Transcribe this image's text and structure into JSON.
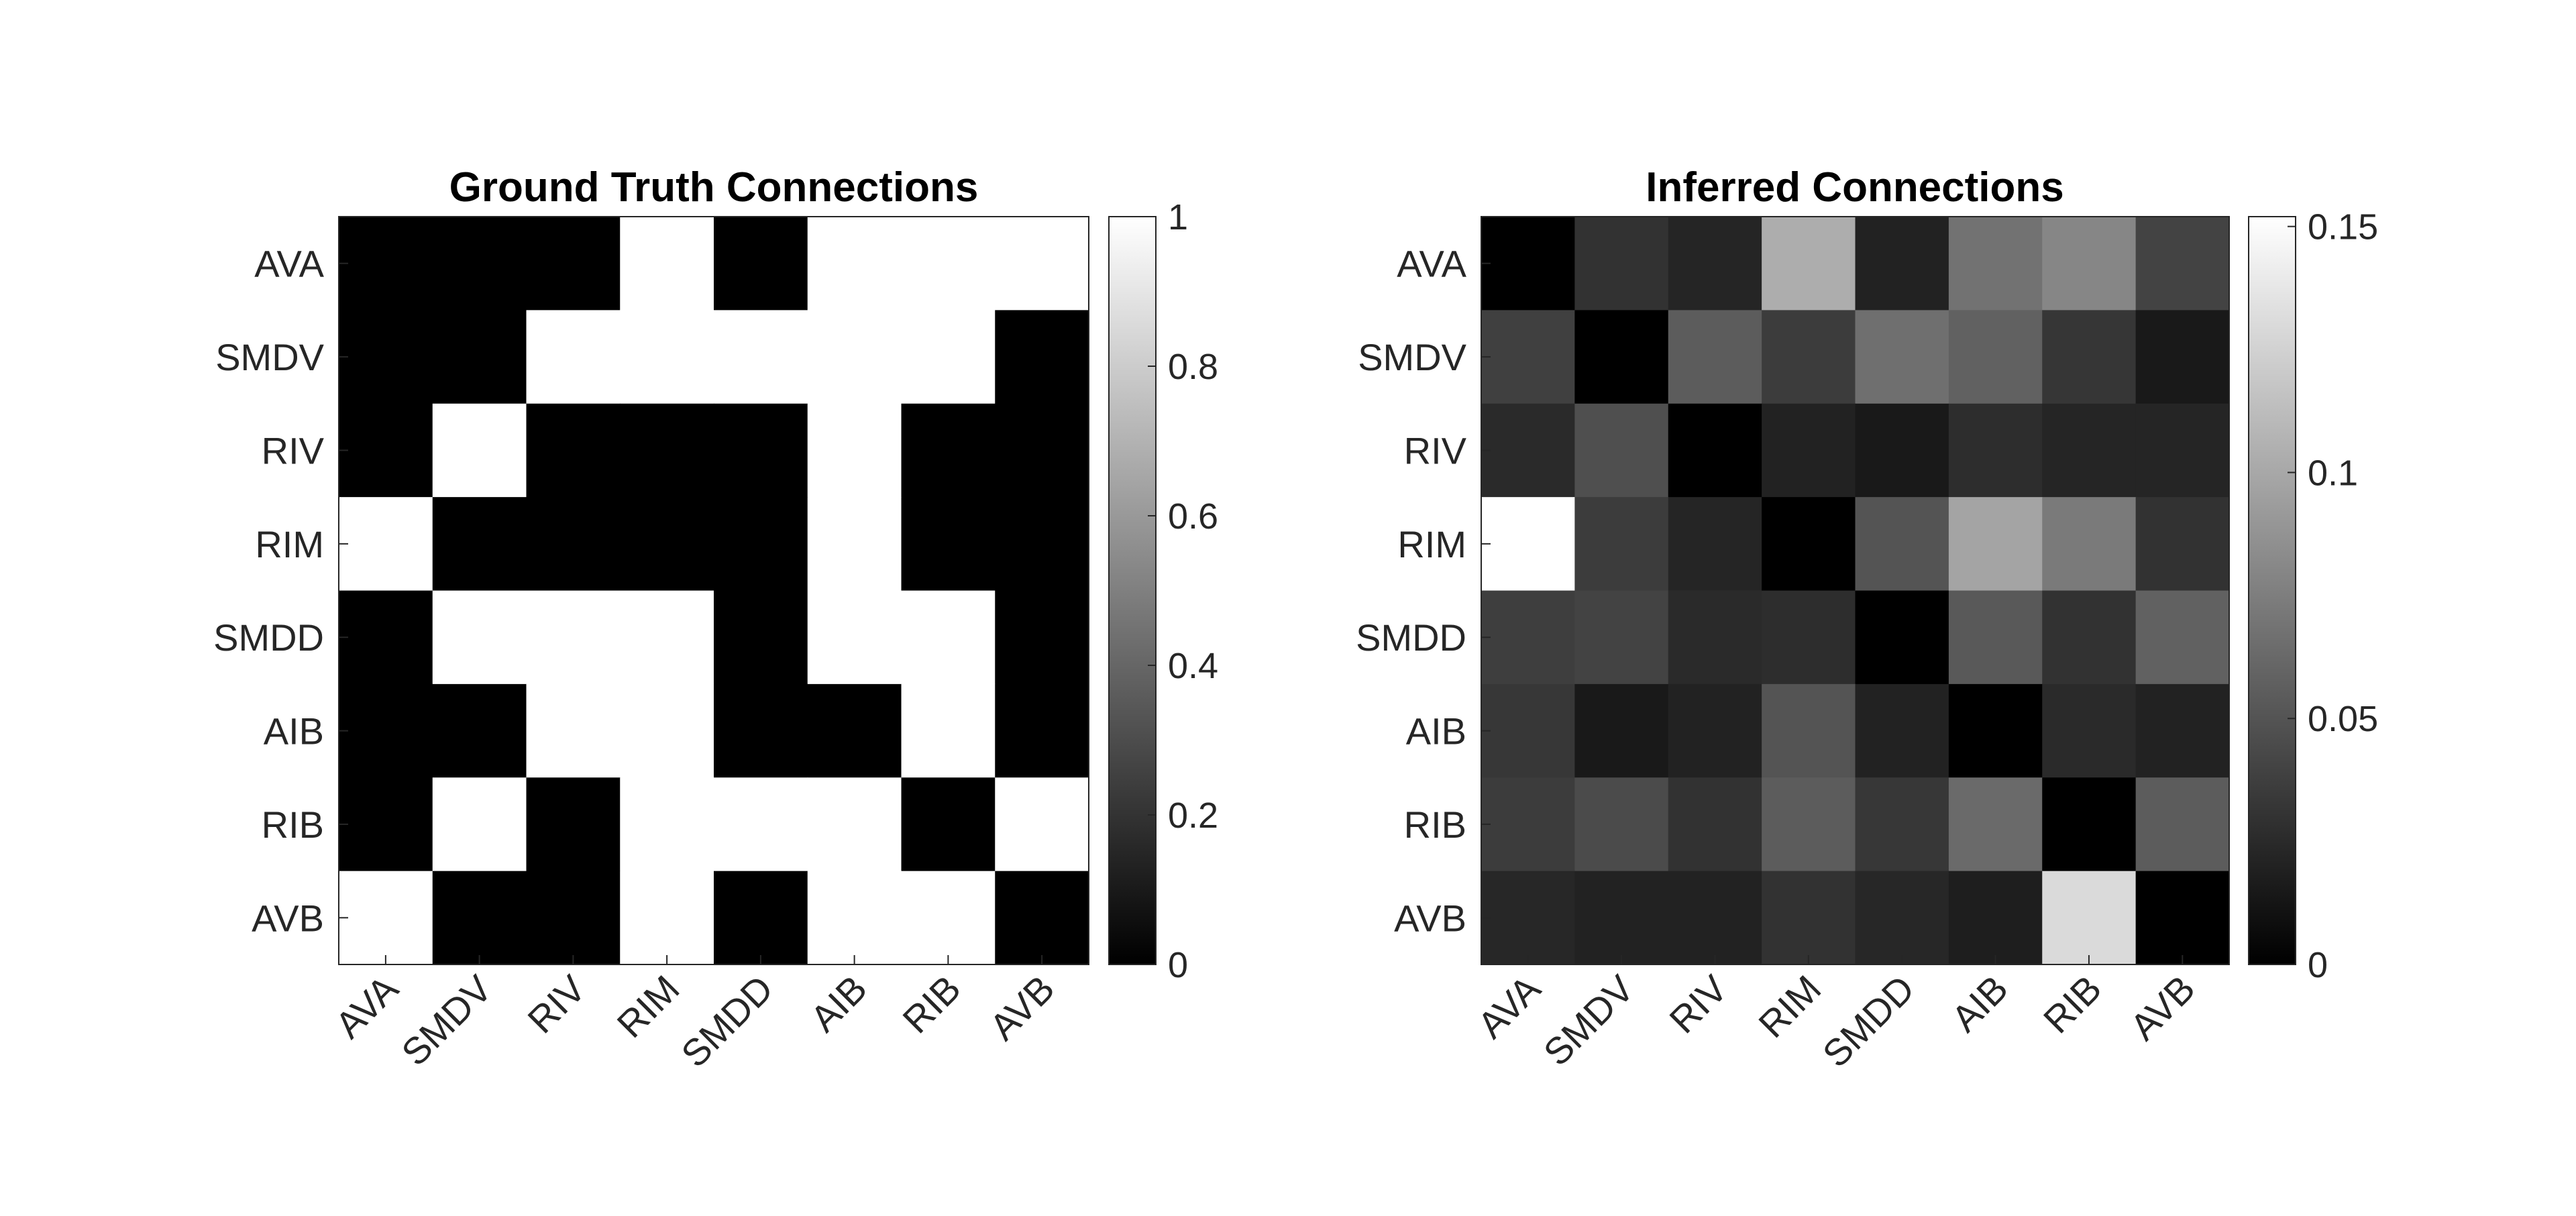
{
  "chart_data": [
    {
      "type": "heatmap",
      "title": "Ground Truth Connections",
      "x_categories": [
        "AVA",
        "SMDV",
        "RIV",
        "RIM",
        "SMDD",
        "AIB",
        "RIB",
        "AVB"
      ],
      "y_categories": [
        "AVA",
        "SMDV",
        "RIV",
        "RIM",
        "SMDD",
        "AIB",
        "RIB",
        "AVB"
      ],
      "values": [
        [
          0,
          0,
          0,
          1,
          0,
          1,
          1,
          1
        ],
        [
          0,
          0,
          1,
          1,
          1,
          1,
          1,
          0
        ],
        [
          0,
          1,
          0,
          0,
          0,
          1,
          0,
          0
        ],
        [
          1,
          0,
          0,
          0,
          0,
          1,
          0,
          0
        ],
        [
          0,
          1,
          1,
          1,
          0,
          1,
          1,
          0
        ],
        [
          0,
          0,
          1,
          1,
          0,
          0,
          1,
          0
        ],
        [
          0,
          1,
          0,
          1,
          1,
          1,
          0,
          1
        ],
        [
          1,
          0,
          0,
          1,
          0,
          1,
          1,
          0
        ]
      ],
      "colormap": "gray",
      "clim": [
        0,
        1
      ],
      "colorbar_ticks": [
        0,
        0.2,
        0.4,
        0.6,
        0.8,
        1
      ],
      "colorbar_tick_labels": [
        "0",
        "0.2",
        "0.4",
        "0.6",
        "0.8",
        "1"
      ]
    },
    {
      "type": "heatmap",
      "title": "Inferred Connections",
      "x_categories": [
        "AVA",
        "SMDV",
        "RIV",
        "RIM",
        "SMDD",
        "AIB",
        "RIB",
        "AVB"
      ],
      "y_categories": [
        "AVA",
        "SMDV",
        "RIV",
        "RIM",
        "SMDD",
        "AIB",
        "RIB",
        "AVB"
      ],
      "values": [
        [
          0.0,
          0.03,
          0.022,
          0.103,
          0.02,
          0.068,
          0.08,
          0.04
        ],
        [
          0.038,
          0.0,
          0.055,
          0.036,
          0.066,
          0.058,
          0.032,
          0.015
        ],
        [
          0.025,
          0.047,
          0.0,
          0.02,
          0.015,
          0.027,
          0.022,
          0.022
        ],
        [
          0.152,
          0.036,
          0.022,
          0.0,
          0.05,
          0.098,
          0.073,
          0.03
        ],
        [
          0.037,
          0.04,
          0.025,
          0.027,
          0.0,
          0.053,
          0.03,
          0.058
        ],
        [
          0.033,
          0.015,
          0.02,
          0.05,
          0.02,
          0.0,
          0.025,
          0.02
        ],
        [
          0.036,
          0.045,
          0.03,
          0.055,
          0.033,
          0.063,
          0.0,
          0.055
        ],
        [
          0.023,
          0.02,
          0.02,
          0.03,
          0.023,
          0.018,
          0.13,
          0.0
        ]
      ],
      "colormap": "gray",
      "clim": [
        0,
        0.152
      ],
      "colorbar_ticks": [
        0,
        0.05,
        0.1,
        0.15
      ],
      "colorbar_tick_labels": [
        "0",
        "0.05",
        "0.1",
        "0.15"
      ]
    }
  ]
}
